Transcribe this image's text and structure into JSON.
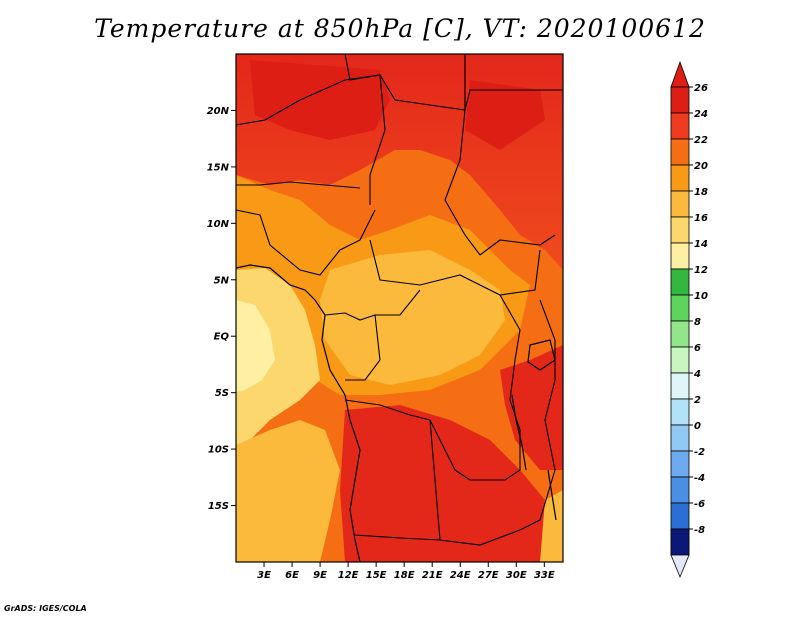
{
  "title": "Temperature at 850hPa [C], VT: 2020100612",
  "credit": "GrADS: IGES/COLA",
  "map": {
    "lon_range": [
      0,
      35
    ],
    "lat_range": [
      -20,
      25
    ],
    "lat_ticks": [
      {
        "value": 20,
        "label": "20N"
      },
      {
        "value": 15,
        "label": "15N"
      },
      {
        "value": 10,
        "label": "10N"
      },
      {
        "value": 5,
        "label": "5N"
      },
      {
        "value": 0,
        "label": "EQ"
      },
      {
        "value": -5,
        "label": "5S"
      },
      {
        "value": -10,
        "label": "10S"
      },
      {
        "value": -15,
        "label": "15S"
      }
    ],
    "lon_ticks": [
      {
        "value": 3,
        "label": "3E"
      },
      {
        "value": 6,
        "label": "6E"
      },
      {
        "value": 9,
        "label": "9E"
      },
      {
        "value": 12,
        "label": "12E"
      },
      {
        "value": 15,
        "label": "15E"
      },
      {
        "value": 18,
        "label": "18E"
      },
      {
        "value": 21,
        "label": "21E"
      },
      {
        "value": 24,
        "label": "24E"
      },
      {
        "value": 27,
        "label": "27E"
      },
      {
        "value": 30,
        "label": "30E"
      },
      {
        "value": 33,
        "label": "33E"
      }
    ]
  },
  "colorbar": {
    "levels": [
      {
        "label": "26",
        "color": "#dc1e14"
      },
      {
        "label": "24",
        "color": "#f03c1e"
      },
      {
        "label": "22",
        "color": "#f56e14"
      },
      {
        "label": "20",
        "color": "#f99a16"
      },
      {
        "label": "18",
        "color": "#fbba3c"
      },
      {
        "label": "16",
        "color": "#fcd76e"
      },
      {
        "label": "14",
        "color": "#fdf0a2"
      },
      {
        "label": "12",
        "color": "#33b83f"
      },
      {
        "label": "10",
        "color": "#5ed45c"
      },
      {
        "label": "8",
        "color": "#92e689"
      },
      {
        "label": "6",
        "color": "#c8f5c0"
      },
      {
        "label": "4",
        "color": "#e0f5f8"
      },
      {
        "label": "2",
        "color": "#b2e2fa"
      },
      {
        "label": "0",
        "color": "#92c8f5"
      },
      {
        "label": "-2",
        "color": "#6eaaf0"
      },
      {
        "label": "-4",
        "color": "#4a8ee6"
      },
      {
        "label": "-6",
        "color": "#2a6ed6"
      },
      {
        "label": "-8",
        "color": "#1450be"
      }
    ],
    "top_color": "#dc1e14",
    "bottom_tail_color": "#0c1878",
    "bottom_arrow_color": "#e6e6fa"
  }
}
